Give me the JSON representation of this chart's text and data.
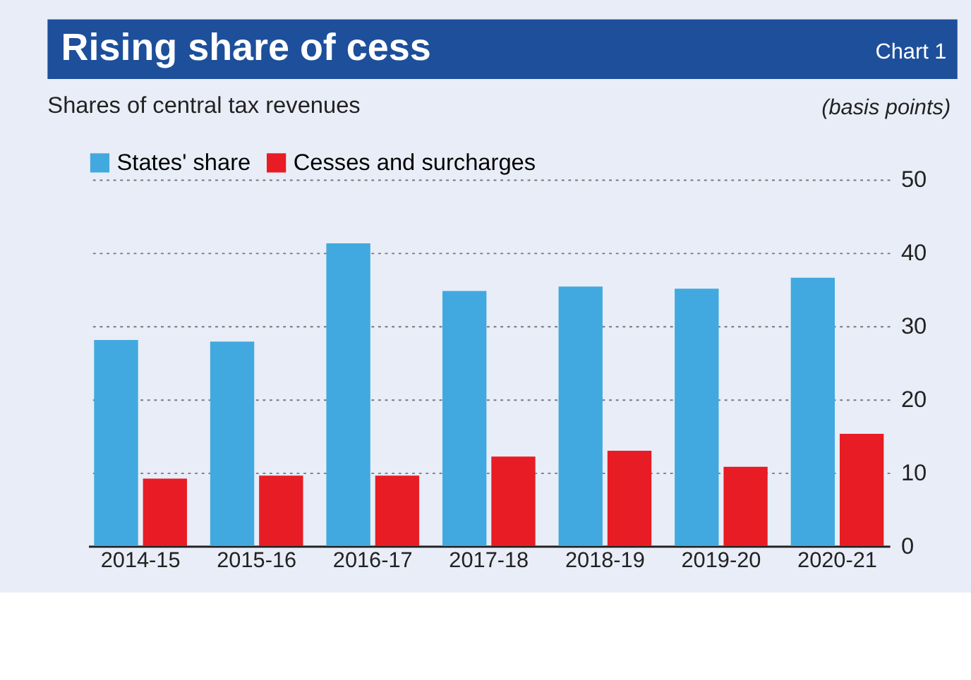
{
  "chart_data": {
    "type": "bar",
    "title": "Rising share of cess",
    "subtitle": "Shares of central tax revenues",
    "ylabel": "(basis points)",
    "annotations": [
      "Chart 1"
    ],
    "categories": [
      "2014-15",
      "2015-16",
      "2016-17",
      "2017-18",
      "2018-19",
      "2019-20",
      "2020-21"
    ],
    "series": [
      {
        "name": "States' share",
        "color": "#41a9df",
        "values": [
          28.1,
          27.9,
          41.3,
          34.8,
          35.4,
          35.1,
          36.6
        ]
      },
      {
        "name": "Cesses and surcharges",
        "color": "#e81c24",
        "values": [
          9.2,
          9.6,
          9.6,
          12.2,
          13.0,
          10.8,
          15.3
        ]
      }
    ],
    "ylim": [
      0,
      50
    ],
    "yticks": [
      0,
      10,
      20,
      30,
      40,
      50
    ],
    "grid": "y",
    "legend": "top"
  }
}
